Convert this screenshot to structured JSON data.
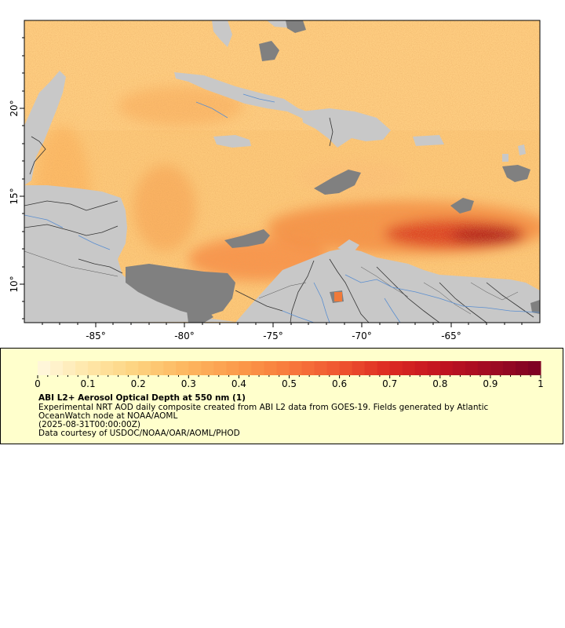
{
  "map": {
    "lon_ticks": [
      "-85°",
      "-80°",
      "-75°",
      "-70°",
      "-65°"
    ],
    "lat_ticks": [
      "20°",
      "15°",
      "10°"
    ]
  },
  "colorbar": {
    "ticks": [
      "0",
      "0.1",
      "0.2",
      "0.3",
      "0.4",
      "0.5",
      "0.6",
      "0.7",
      "0.8",
      "0.9",
      "1"
    ],
    "colors": [
      "#fff8e0",
      "#fee7a8",
      "#fdd27e",
      "#fdb55e",
      "#fb9a4a",
      "#f87a3c",
      "#ef5530",
      "#dc2a22",
      "#c21420",
      "#a00b22",
      "#7a0022"
    ]
  },
  "legend": {
    "title": "ABI L2+ Aerosol Optical Depth at 550 nm (1)",
    "desc_line1": "Experimental NRT AOD daily composite created from ABI L2 data from GOES-19. Fields generated by Atlantic",
    "desc_line2": "OceanWatch node at NOAA/AOML",
    "date": "(2025-08-31T00:00:00Z)",
    "credit": "Data courtesy of USDOC/NOAA/OAR/AOML/PHOD"
  },
  "colors": {
    "land": "#c8c8c8",
    "nodata": "#808080",
    "rivers": "#5a8ed0",
    "borders": "#333333"
  }
}
